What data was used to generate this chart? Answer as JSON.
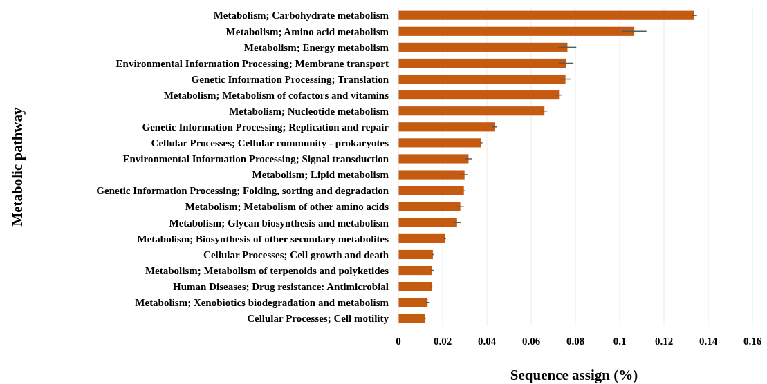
{
  "chart_data": {
    "type": "bar",
    "orientation": "horizontal",
    "xlabel": "Sequence assign (%)",
    "ylabel": "Metabolic pathway",
    "categories": [
      "Metabolism; Carbohydrate metabolism",
      "Metabolism; Amino acid metabolism",
      "Metabolism; Energy metabolism",
      "Environmental Information Processing; Membrane transport",
      "Genetic Information Processing; Translation",
      "Metabolism; Metabolism of cofactors and vitamins",
      "Metabolism; Nucleotide metabolism",
      "Genetic Information Processing; Replication and repair",
      "Cellular Processes; Cellular community - prokaryotes",
      "Environmental Information Processing; Signal transduction",
      "Metabolism; Lipid metabolism",
      "Genetic Information Processing; Folding, sorting and degradation",
      "Metabolism; Metabolism of other amino acids",
      "Metabolism; Glycan biosynthesis and metabolism",
      "Metabolism; Biosynthesis of other secondary metabolites",
      "Cellular Processes; Cell growth and death",
      "Metabolism; Metabolism of terpenoids and polyketides",
      "Human Diseases; Drug resistance: Antimicrobial",
      "Metabolism; Xenobiotics biodegradation and metabolism",
      "Cellular Processes; Cell motility"
    ],
    "values": [
      0.1337,
      0.1066,
      0.0764,
      0.0758,
      0.0755,
      0.0726,
      0.066,
      0.0435,
      0.0375,
      0.0317,
      0.0299,
      0.0296,
      0.028,
      0.0265,
      0.021,
      0.0156,
      0.0153,
      0.015,
      0.0132,
      0.0121
    ],
    "errors": [
      0.0012,
      0.0055,
      0.004,
      0.0033,
      0.0023,
      0.0015,
      0.0013,
      0.001,
      0.0005,
      0.0015,
      0.0016,
      0.0005,
      0.0015,
      0.0016,
      0.0005,
      0.0006,
      0.0008,
      0.0004,
      0.001,
      0.0004
    ],
    "color": "#c55a11",
    "xlim": [
      0,
      0.16
    ],
    "xticks": [
      0,
      0.02,
      0.04,
      0.06,
      0.08,
      0.1,
      0.12,
      0.14,
      0.16
    ],
    "grid": "x"
  }
}
